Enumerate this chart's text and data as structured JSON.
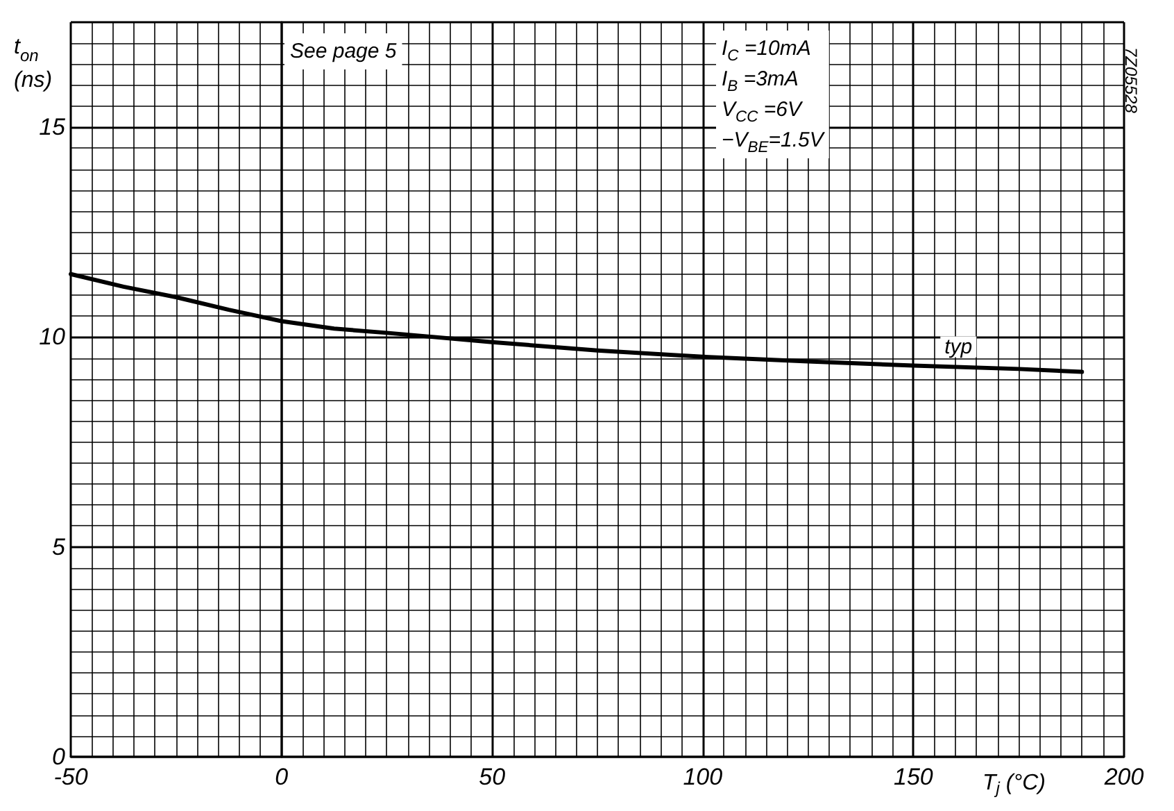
{
  "chart_data": {
    "type": "line",
    "xlabel": "T$_{j}$ (°C)",
    "ylabel": "t$_{on}$ (ns)",
    "x": [
      -50,
      -37.5,
      -25,
      -12.5,
      0,
      12.5,
      25,
      50,
      75,
      100,
      125,
      150,
      175,
      190
    ],
    "series": [
      {
        "name": "typ",
        "color": "#000000",
        "values": [
          11.5,
          11.2,
          10.95,
          10.65,
          10.38,
          10.2,
          10.1,
          9.88,
          9.68,
          9.53,
          9.42,
          9.32,
          9.24,
          9.17
        ]
      }
    ],
    "xlim": [
      -50,
      200
    ],
    "xticks": [
      -50,
      0,
      50,
      100,
      150,
      200
    ],
    "ylim": [
      0,
      17.5
    ],
    "yticks": [
      0,
      5,
      10,
      15
    ],
    "grid": true,
    "legend": false,
    "marker": "none",
    "line_style": "solid",
    "annotations": [
      "See page 5",
      "I$_{C}$ =10mA\nI$_{B}$ =3mA\nV$_{CC}$ =6V\n−V$_{BE}$=1.5V",
      "7Z05528"
    ]
  }
}
